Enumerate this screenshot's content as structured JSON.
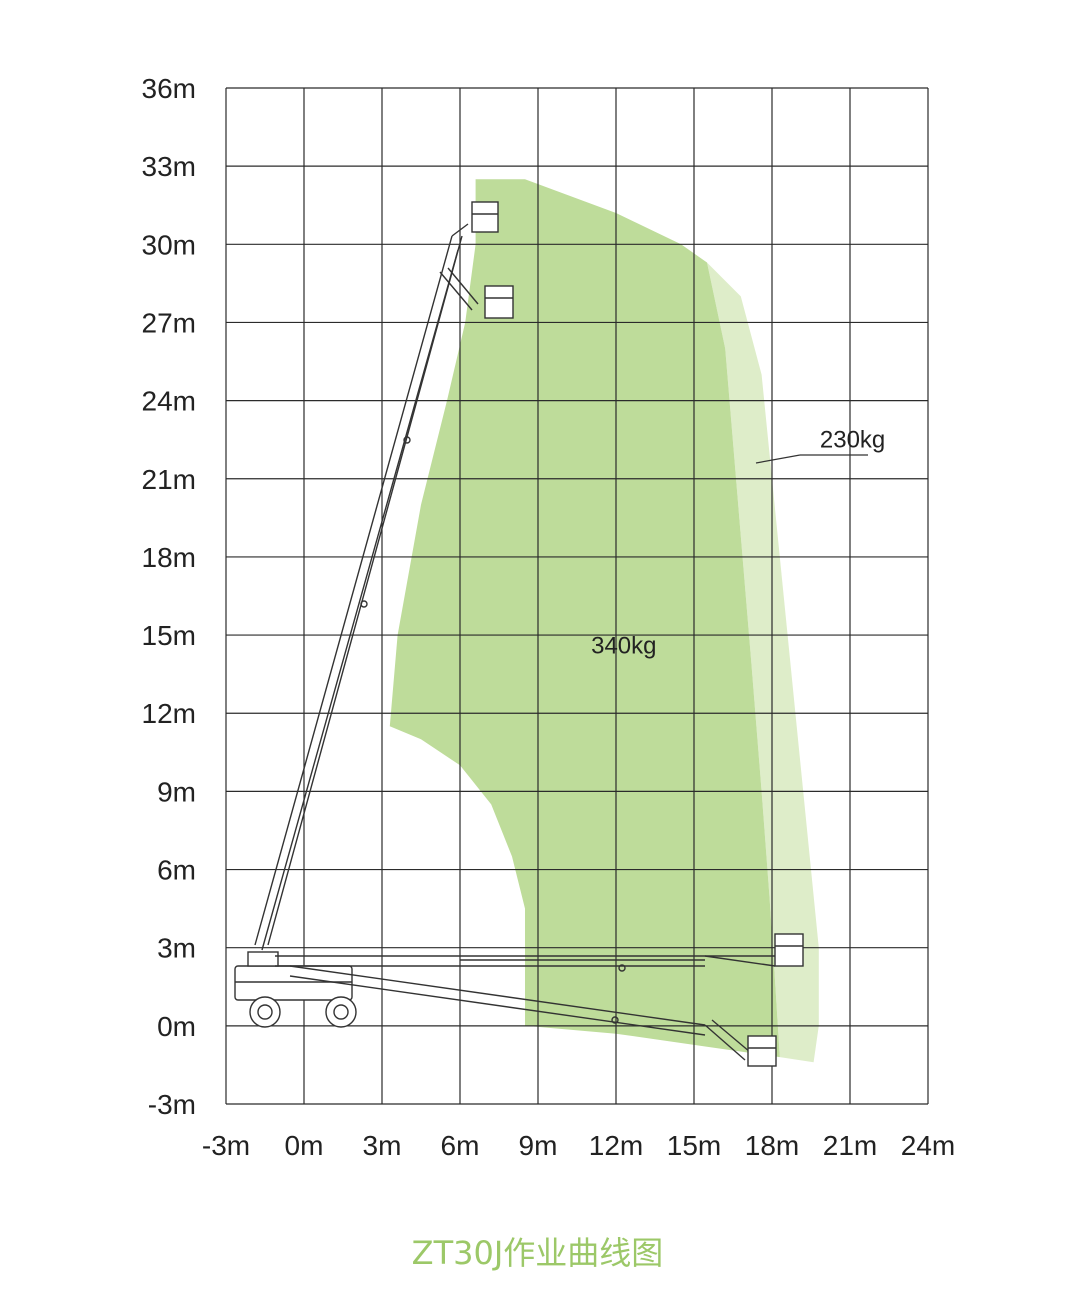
{
  "chart_data": {
    "type": "working-range-diagram",
    "x_ticks": [
      "-3m",
      "0m",
      "3m",
      "6m",
      "9m",
      "12m",
      "15m",
      "18m",
      "21m",
      "24m"
    ],
    "y_ticks": [
      "36m",
      "33m",
      "30m",
      "27m",
      "24m",
      "21m",
      "18m",
      "15m",
      "12m",
      "9m",
      "6m",
      "3m",
      "0m",
      "-3m"
    ],
    "xlim": [
      -3,
      24
    ],
    "ylim": [
      -3,
      36
    ],
    "grid": true,
    "zones": [
      {
        "label": "340kg",
        "color": "#bedc9a",
        "outline": [
          [
            6.6,
            32.5
          ],
          [
            8.5,
            32.5
          ],
          [
            12,
            31.2
          ],
          [
            14.5,
            30
          ],
          [
            15.5,
            29.3
          ],
          [
            16.2,
            26
          ],
          [
            16.7,
            20
          ],
          [
            17.2,
            14
          ],
          [
            17.6,
            9
          ],
          [
            17.9,
            5
          ],
          [
            18.1,
            2
          ],
          [
            18.3,
            -1.2
          ],
          [
            15.5,
            -0.8
          ],
          [
            12,
            -0.3
          ],
          [
            8.5,
            0
          ],
          [
            8.5,
            4.5
          ],
          [
            8,
            6.5
          ],
          [
            7.2,
            8.5
          ],
          [
            6,
            10
          ],
          [
            4.5,
            11
          ],
          [
            3.3,
            11.5
          ],
          [
            3.6,
            15
          ],
          [
            4.5,
            20
          ],
          [
            5.5,
            24
          ],
          [
            6.2,
            27
          ],
          [
            6.6,
            30
          ]
        ]
      },
      {
        "label": "230kg",
        "color": "#deedc9",
        "outline": [
          [
            15.5,
            29.3
          ],
          [
            16.8,
            28
          ],
          [
            17.6,
            25
          ],
          [
            18.1,
            20
          ],
          [
            18.6,
            15
          ],
          [
            19.1,
            10
          ],
          [
            19.5,
            6
          ],
          [
            19.8,
            3
          ],
          [
            19.8,
            0
          ],
          [
            19.6,
            -1.4
          ],
          [
            18.3,
            -1.2
          ],
          [
            18.1,
            2
          ],
          [
            17.9,
            5
          ],
          [
            17.6,
            9
          ],
          [
            17.2,
            14
          ],
          [
            16.7,
            20
          ],
          [
            16.2,
            26
          ]
        ]
      }
    ],
    "annotations": [
      {
        "text": "340kg",
        "x": 12.3,
        "y": 14.6
      },
      {
        "text": "230kg",
        "x": 21.1,
        "y": 22.5
      }
    ]
  },
  "caption": "ZT30J作业曲线图",
  "colors": {
    "inner_zone": "#bedc9a",
    "outer_zone": "#deedc9",
    "grid": "#2b2b2b",
    "caption": "#9cc868"
  },
  "icons": [
    "machine-icon"
  ]
}
